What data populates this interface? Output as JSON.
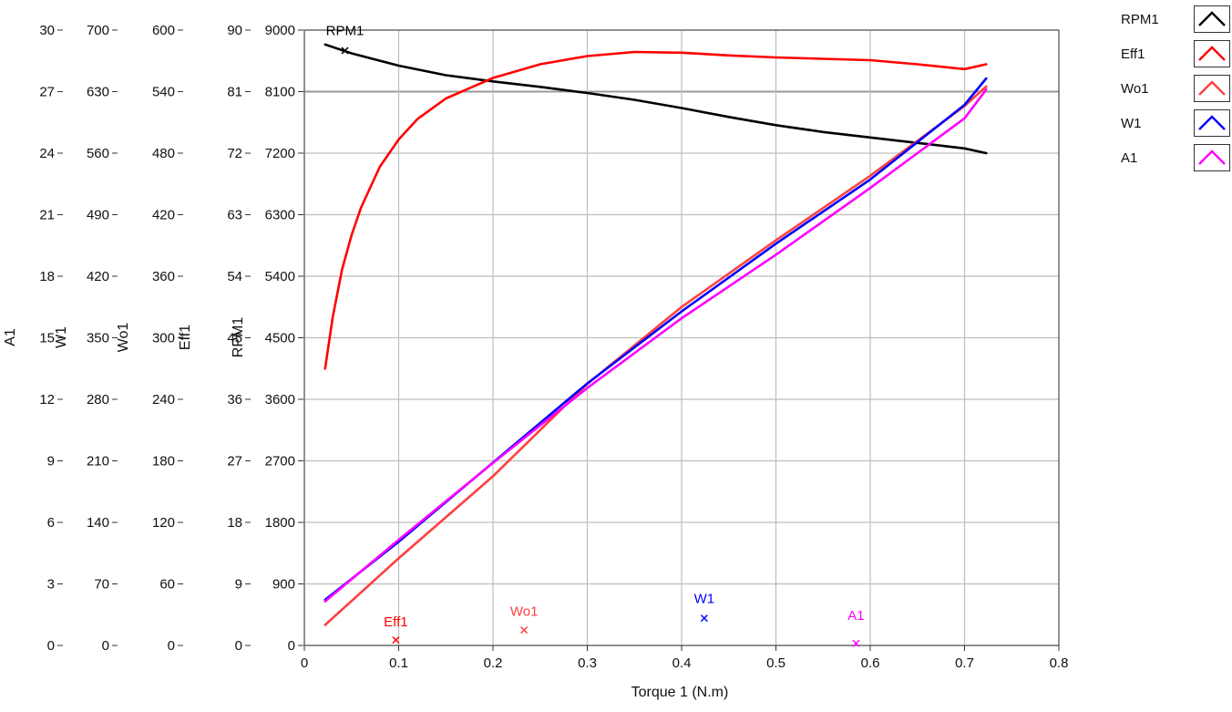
{
  "chart_data": {
    "type": "line",
    "title": "",
    "xlabel": "Torque 1 (N.m)",
    "xlim": [
      0,
      0.8
    ],
    "x_ticks": [
      "0",
      "0.1",
      "0.2",
      "0.3",
      "0.4",
      "0.5",
      "0.6",
      "0.7",
      "0.8"
    ],
    "grid": true,
    "legend_position": "top-right",
    "axes": [
      {
        "label": "A1",
        "ylim": [
          0,
          30
        ],
        "ticks": [
          "0",
          "3",
          "6",
          "9",
          "12",
          "15",
          "18",
          "21",
          "24",
          "27",
          "30"
        ]
      },
      {
        "label": "W1",
        "ylim": [
          0,
          700
        ],
        "ticks": [
          "0",
          "70",
          "140",
          "210",
          "280",
          "350",
          "420",
          "490",
          "560",
          "630",
          "700"
        ]
      },
      {
        "label": "Wo1",
        "ylim": [
          0,
          600
        ],
        "ticks": [
          "0",
          "60",
          "120",
          "180",
          "240",
          "300",
          "360",
          "420",
          "480",
          "540",
          "600"
        ]
      },
      {
        "label": "Eff1",
        "ylim": [
          0,
          90
        ],
        "ticks": [
          "0",
          "9",
          "18",
          "27",
          "36",
          "45",
          "54",
          "63",
          "72",
          "81",
          "90"
        ]
      },
      {
        "label": "RPM1",
        "ylim": [
          0,
          9000
        ],
        "ticks": [
          "0",
          "900",
          "1800",
          "2700",
          "3600",
          "4500",
          "5400",
          "6300",
          "7200",
          "8100",
          "9000"
        ]
      }
    ],
    "series": [
      {
        "name": "RPM1",
        "color": "#000000",
        "axis": 4,
        "x": [
          0.022,
          0.05,
          0.1,
          0.15,
          0.2,
          0.25,
          0.3,
          0.35,
          0.4,
          0.45,
          0.5,
          0.55,
          0.6,
          0.65,
          0.7,
          0.723
        ],
        "y": [
          8790,
          8660,
          8480,
          8340,
          8250,
          8170,
          8080,
          7980,
          7860,
          7730,
          7610,
          7510,
          7430,
          7350,
          7270,
          7200
        ],
        "marker": {
          "x": 0.043,
          "y": 8700
        },
        "annotation": {
          "text": "RPM1",
          "x": 0.043,
          "y": 8930
        }
      },
      {
        "name": "Eff1",
        "color": "#ff0000",
        "axis": 3,
        "x": [
          0.022,
          0.03,
          0.04,
          0.05,
          0.06,
          0.07,
          0.08,
          0.1,
          0.12,
          0.15,
          0.2,
          0.25,
          0.3,
          0.35,
          0.4,
          0.45,
          0.5,
          0.55,
          0.6,
          0.65,
          0.7,
          0.723
        ],
        "y": [
          40.5,
          48,
          55,
          60,
          64,
          67,
          70,
          74,
          77,
          80,
          83,
          85,
          86.2,
          86.8,
          86.7,
          86.3,
          86.0,
          85.8,
          85.6,
          85.0,
          84.3,
          85.0
        ],
        "marker": {
          "x": 0.097,
          "y": 0.8
        },
        "annotation": {
          "text": "Eff1",
          "x": 0.097,
          "y": 2.8
        }
      },
      {
        "name": "Wo1",
        "color": "#ff4040",
        "axis": 2,
        "x": [
          0.022,
          0.1,
          0.2,
          0.3,
          0.4,
          0.5,
          0.6,
          0.7,
          0.723
        ],
        "y": [
          20,
          85,
          165,
          255,
          330,
          395,
          458,
          526,
          545
        ],
        "marker": {
          "x": 0.233,
          "y": 15
        },
        "annotation": {
          "text": "Wo1",
          "x": 0.233,
          "y": 29
        }
      },
      {
        "name": "W1",
        "color": "#0000ff",
        "axis": 1,
        "x": [
          0.022,
          0.1,
          0.2,
          0.3,
          0.4,
          0.5,
          0.6,
          0.7,
          0.723
        ],
        "y": [
          52,
          118,
          208,
          298,
          380,
          457,
          530,
          615,
          645
        ],
        "marker": {
          "x": 0.424,
          "y": 31
        },
        "annotation": {
          "text": "W1",
          "x": 0.424,
          "y": 48
        }
      },
      {
        "name": "A1",
        "color": "#ff00ff",
        "axis": 0,
        "x": [
          0.022,
          0.1,
          0.2,
          0.3,
          0.4,
          0.5,
          0.6,
          0.7,
          0.723
        ],
        "y": [
          2.15,
          5.15,
          8.9,
          12.55,
          15.95,
          19.05,
          22.3,
          25.7,
          27.1
        ],
        "marker": {
          "x": 0.585,
          "y": 0.1
        },
        "annotation": {
          "text": "A1",
          "x": 0.585,
          "y": 1.25
        }
      }
    ]
  }
}
